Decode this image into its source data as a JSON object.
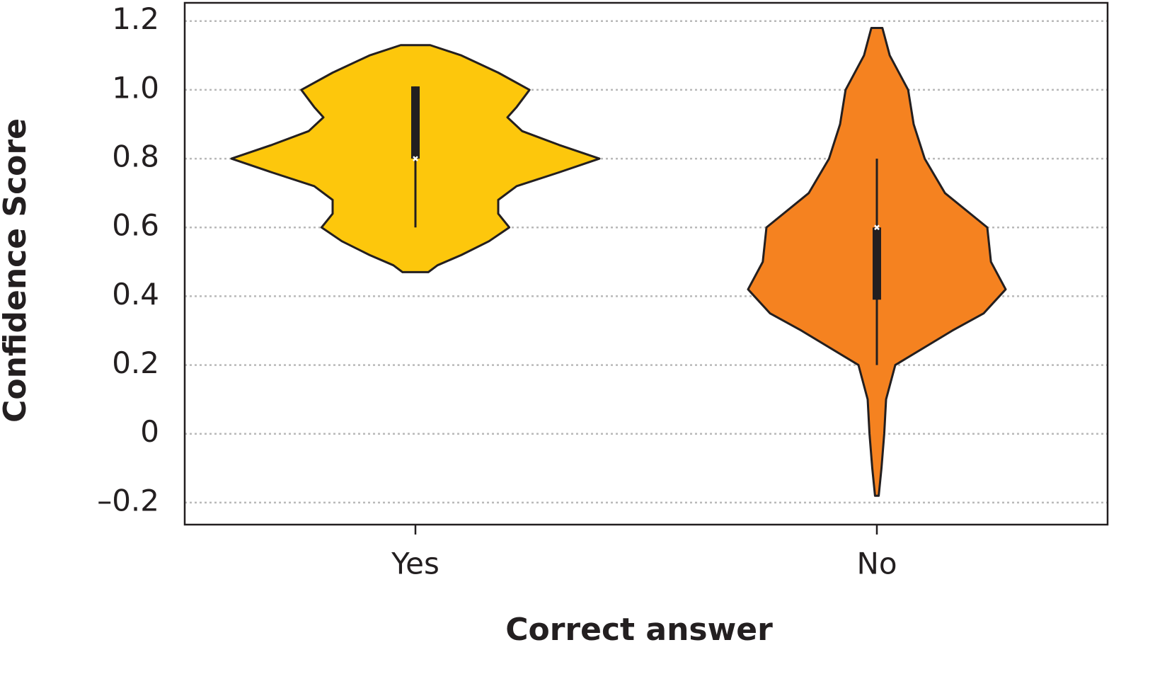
{
  "chart_data": {
    "type": "violin",
    "x_label": "Correct answer",
    "y_label": "Confidence Score",
    "categories": [
      "Yes",
      "No"
    ],
    "ylim": [
      -0.264,
      1.253
    ],
    "yticks": [
      {
        "value": -0.2,
        "label": "–0.2"
      },
      0,
      0.2,
      0.4,
      0.6,
      0.8,
      {
        "value": 1.0,
        "label": "1.0"
      },
      1.2
    ],
    "grid": true,
    "series": [
      {
        "name": "Yes",
        "color": "#fdc70c",
        "y": [
          1.13,
          1.1,
          1.05,
          1.0,
          0.95,
          0.92,
          0.88,
          0.84,
          0.8,
          0.76,
          0.72,
          0.68,
          0.64,
          0.6,
          0.56,
          0.52,
          0.49,
          0.47
        ],
        "density": [
          0.08,
          0.25,
          0.45,
          0.62,
          0.55,
          0.5,
          0.58,
          0.78,
          1.0,
          0.78,
          0.55,
          0.45,
          0.45,
          0.51,
          0.4,
          0.25,
          0.12,
          0.07
        ],
        "whisker_low": 0.6,
        "q1": 0.8,
        "median": 0.8,
        "q3": 1.01,
        "whisker_high": 1.01
      },
      {
        "name": "No",
        "color": "#f58220",
        "y": [
          1.18,
          1.1,
          1.0,
          0.9,
          0.8,
          0.7,
          0.6,
          0.5,
          0.42,
          0.35,
          0.3,
          0.2,
          0.1,
          0.0,
          -0.1,
          -0.18
        ],
        "density": [
          0.03,
          0.07,
          0.17,
          0.2,
          0.26,
          0.37,
          0.6,
          0.62,
          0.7,
          0.58,
          0.41,
          0.1,
          0.05,
          0.04,
          0.025,
          0.01
        ],
        "whisker_low": 0.2,
        "q1": 0.39,
        "median": 0.6,
        "q3": 0.6,
        "whisker_high": 0.8
      }
    ]
  }
}
